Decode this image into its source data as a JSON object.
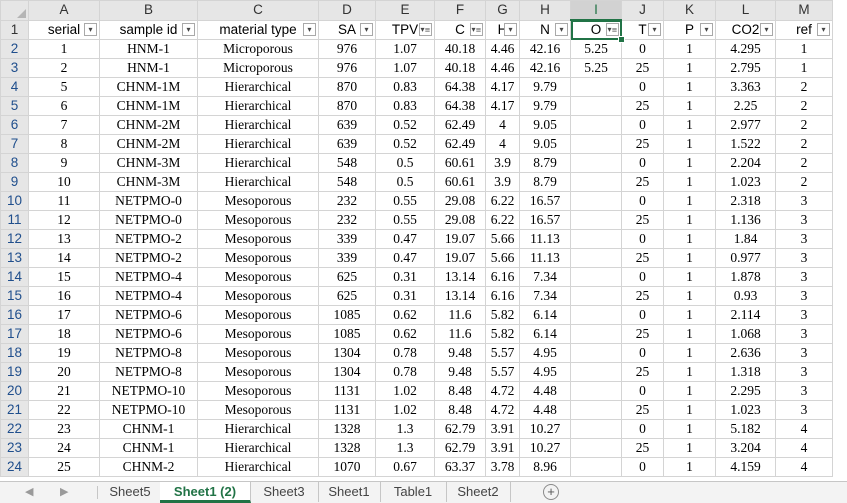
{
  "columns": [
    "A",
    "B",
    "C",
    "D",
    "E",
    "F",
    "G",
    "H",
    "I",
    "J",
    "K",
    "L",
    "M"
  ],
  "active_column": "I",
  "headers": [
    "serial",
    "sample id",
    "material type",
    "SA",
    "TPV",
    "C",
    "H",
    "N",
    "O",
    "T",
    "P",
    "CO2",
    "ref"
  ],
  "filtered_headers": [
    4,
    5,
    8
  ],
  "icons": {
    "filter": "filter-dropdown-icon",
    "filter_active": "filter-applied-icon"
  },
  "rows": [
    [
      "1",
      "HNM-1",
      "Microporous",
      "976",
      "1.07",
      "40.18",
      "4.46",
      "42.16",
      "5.25",
      "0",
      "1",
      "4.295",
      "1"
    ],
    [
      "2",
      "HNM-1",
      "Microporous",
      "976",
      "1.07",
      "40.18",
      "4.46",
      "42.16",
      "5.25",
      "25",
      "1",
      "2.795",
      "1"
    ],
    [
      "5",
      "CHNM-1M",
      "Hierarchical",
      "870",
      "0.83",
      "64.38",
      "4.17",
      "9.79",
      "",
      "0",
      "1",
      "3.363",
      "2"
    ],
    [
      "6",
      "CHNM-1M",
      "Hierarchical",
      "870",
      "0.83",
      "64.38",
      "4.17",
      "9.79",
      "",
      "25",
      "1",
      "2.25",
      "2"
    ],
    [
      "7",
      "CHNM-2M",
      "Hierarchical",
      "639",
      "0.52",
      "62.49",
      "4",
      "9.05",
      "",
      "0",
      "1",
      "2.977",
      "2"
    ],
    [
      "8",
      "CHNM-2M",
      "Hierarchical",
      "639",
      "0.52",
      "62.49",
      "4",
      "9.05",
      "",
      "25",
      "1",
      "1.522",
      "2"
    ],
    [
      "9",
      "CHNM-3M",
      "Hierarchical",
      "548",
      "0.5",
      "60.61",
      "3.9",
      "8.79",
      "",
      "0",
      "1",
      "2.204",
      "2"
    ],
    [
      "10",
      "CHNM-3M",
      "Hierarchical",
      "548",
      "0.5",
      "60.61",
      "3.9",
      "8.79",
      "",
      "25",
      "1",
      "1.023",
      "2"
    ],
    [
      "11",
      "NETPMO-0",
      "Mesoporous",
      "232",
      "0.55",
      "29.08",
      "6.22",
      "16.57",
      "",
      "0",
      "1",
      "2.318",
      "3"
    ],
    [
      "12",
      "NETPMO-0",
      "Mesoporous",
      "232",
      "0.55",
      "29.08",
      "6.22",
      "16.57",
      "",
      "25",
      "1",
      "1.136",
      "3"
    ],
    [
      "13",
      "NETPMO-2",
      "Mesoporous",
      "339",
      "0.47",
      "19.07",
      "5.66",
      "11.13",
      "",
      "0",
      "1",
      "1.84",
      "3"
    ],
    [
      "14",
      "NETPMO-2",
      "Mesoporous",
      "339",
      "0.47",
      "19.07",
      "5.66",
      "11.13",
      "",
      "25",
      "1",
      "0.977",
      "3"
    ],
    [
      "15",
      "NETPMO-4",
      "Mesoporous",
      "625",
      "0.31",
      "13.14",
      "6.16",
      "7.34",
      "",
      "0",
      "1",
      "1.878",
      "3"
    ],
    [
      "16",
      "NETPMO-4",
      "Mesoporous",
      "625",
      "0.31",
      "13.14",
      "6.16",
      "7.34",
      "",
      "25",
      "1",
      "0.93",
      "3"
    ],
    [
      "17",
      "NETPMO-6",
      "Mesoporous",
      "1085",
      "0.62",
      "11.6",
      "5.82",
      "6.14",
      "",
      "0",
      "1",
      "2.114",
      "3"
    ],
    [
      "18",
      "NETPMO-6",
      "Mesoporous",
      "1085",
      "0.62",
      "11.6",
      "5.82",
      "6.14",
      "",
      "25",
      "1",
      "1.068",
      "3"
    ],
    [
      "19",
      "NETPMO-8",
      "Mesoporous",
      "1304",
      "0.78",
      "9.48",
      "5.57",
      "4.95",
      "",
      "0",
      "1",
      "2.636",
      "3"
    ],
    [
      "20",
      "NETPMO-8",
      "Mesoporous",
      "1304",
      "0.78",
      "9.48",
      "5.57",
      "4.95",
      "",
      "25",
      "1",
      "1.318",
      "3"
    ],
    [
      "21",
      "NETPMO-10",
      "Mesoporous",
      "1131",
      "1.02",
      "8.48",
      "4.72",
      "4.48",
      "",
      "0",
      "1",
      "2.295",
      "3"
    ],
    [
      "22",
      "NETPMO-10",
      "Mesoporous",
      "1131",
      "1.02",
      "8.48",
      "4.72",
      "4.48",
      "",
      "25",
      "1",
      "1.023",
      "3"
    ],
    [
      "23",
      "CHNM-1",
      "Hierarchical",
      "1328",
      "1.3",
      "62.79",
      "3.91",
      "10.27",
      "",
      "0",
      "1",
      "5.182",
      "4"
    ],
    [
      "24",
      "CHNM-1",
      "Hierarchical",
      "1328",
      "1.3",
      "62.79",
      "3.91",
      "10.27",
      "",
      "25",
      "1",
      "3.204",
      "4"
    ],
    [
      "25",
      "CHNM-2",
      "Hierarchical",
      "1070",
      "0.67",
      "63.37",
      "3.78",
      "8.96",
      "",
      "0",
      "1",
      "4.159",
      "4"
    ]
  ],
  "sheet_tabs": [
    "Sheet5",
    "Sheet1 (2)",
    "Sheet3",
    "Sheet1",
    "Table1",
    "Sheet2"
  ],
  "active_tab": "Sheet1 (2)",
  "add_sheet_symbol": "+"
}
